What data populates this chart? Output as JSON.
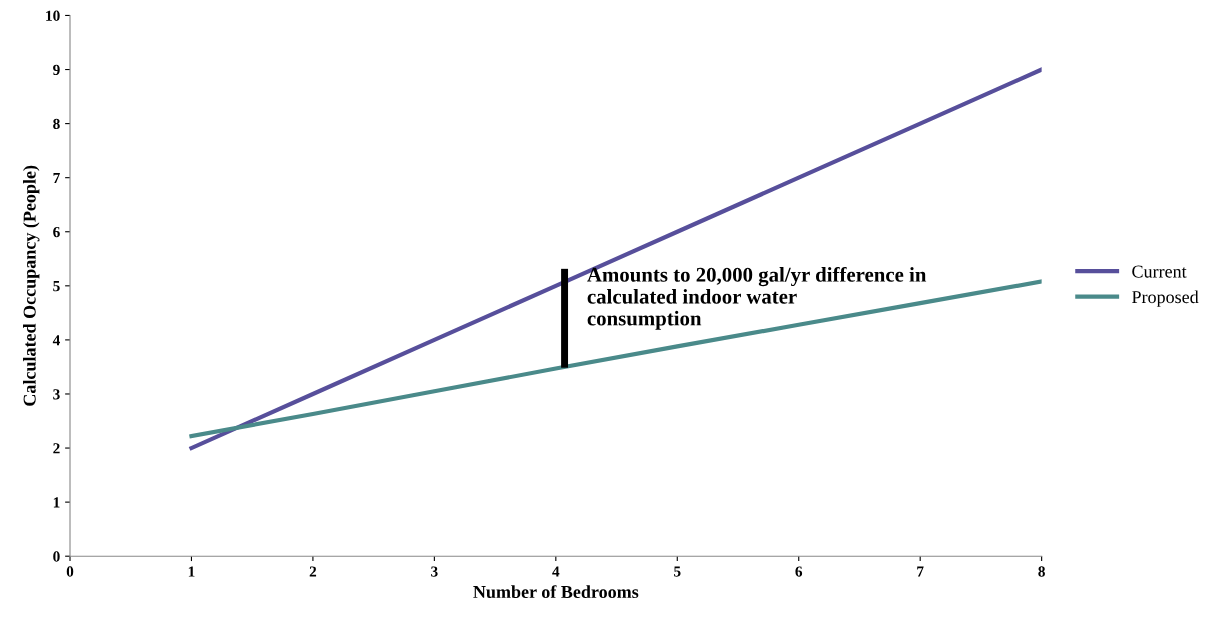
{
  "chart_data": {
    "type": "line",
    "xlabel": "Number of Bedrooms",
    "ylabel": "Calculated Occupancy (People)",
    "x": [
      1,
      2,
      3,
      4,
      5,
      6,
      7,
      8
    ],
    "series": [
      {
        "name": "Current",
        "color": "#574f9b",
        "values": [
          2,
          3,
          4,
          5,
          6,
          7,
          8,
          9
        ]
      },
      {
        "name": "Proposed",
        "color": "#4a8a8a",
        "values": [
          2.22,
          2.63,
          3.05,
          3.47,
          3.88,
          4.28,
          4.68,
          5.08
        ]
      }
    ],
    "xlim": [
      0,
      8
    ],
    "xticks": [
      0,
      1,
      2,
      3,
      4,
      5,
      6,
      7,
      8
    ],
    "ylim": [
      0,
      10
    ],
    "yticks": [
      0,
      1,
      2,
      3,
      4,
      5,
      6,
      7,
      8,
      9,
      10
    ],
    "annotations": [
      "Amounts to 20,000 gal/yr difference in\ncalculated indoor water\nconsumption"
    ],
    "grid": false,
    "legend": "right",
    "marker": "none",
    "line_style": "solid"
  }
}
